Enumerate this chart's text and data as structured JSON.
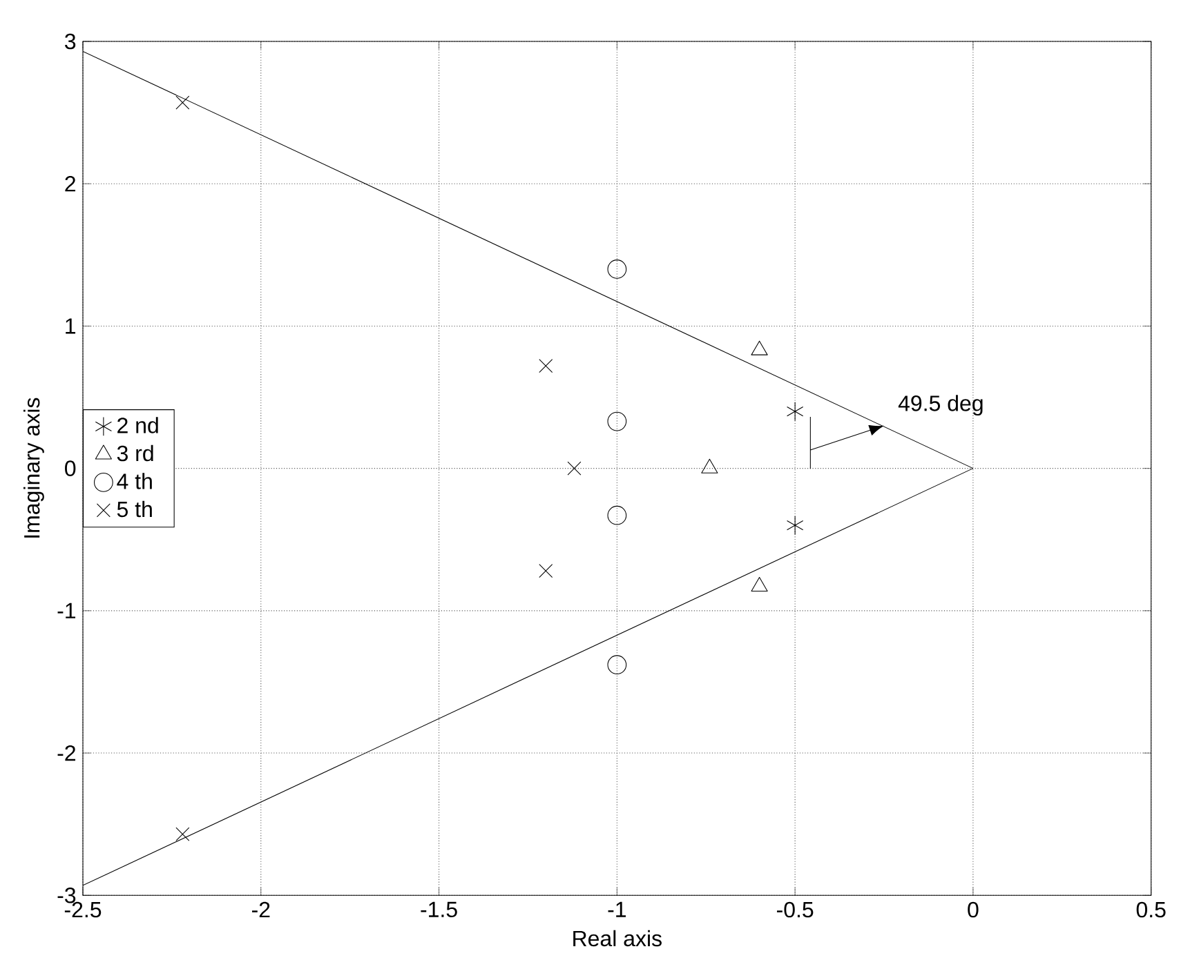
{
  "chart_data": {
    "type": "scatter",
    "xlabel": "Real axis",
    "ylabel": "Imaginary axis",
    "xlim": [
      -2.5,
      0.5
    ],
    "ylim": [
      -3,
      3
    ],
    "xticks": [
      -2.5,
      -2,
      -1.5,
      -1,
      -0.5,
      0,
      0.5
    ],
    "yticks": [
      -3,
      -2,
      -1,
      0,
      1,
      2,
      3
    ],
    "grid": true,
    "legend": "left",
    "series": [
      {
        "name": "2 nd",
        "color": "#000000",
        "x": [
          -0.5,
          -0.5
        ],
        "values": [
          0.4,
          -0.4
        ]
      },
      {
        "name": "3 rd",
        "color": "#000000",
        "marker": "triangle",
        "x": [
          -0.6,
          -0.74,
          -0.6
        ],
        "values": [
          0.83,
          0,
          -0.83
        ]
      },
      {
        "name": "4 th",
        "color": "#000000",
        "marker": "circle",
        "x": [
          -1.0,
          -1.0,
          -1.0,
          -1.0
        ],
        "values": [
          1.4,
          0.33,
          -0.33,
          -1.38
        ]
      },
      {
        "name": "5 th",
        "color": "#000000",
        "marker": "cross",
        "x": [
          -2.22,
          -1.2,
          -1.12,
          -1.2,
          -2.22
        ],
        "values": [
          2.57,
          0.72,
          0,
          -0.72,
          -2.57
        ]
      },
      {
        "type": "line",
        "color": "#000000",
        "marker": "none",
        "x": [
          -2.5,
          0
        ],
        "values": [
          2.93,
          0
        ]
      },
      {
        "type": "line",
        "color": "#000000",
        "marker": "none",
        "x": [
          -2.5,
          0
        ],
        "values": [
          -2.93,
          0
        ]
      }
    ],
    "annotations": [
      {
        "text": "49.5  deg",
        "x": -0.25,
        "y": 0.3
      }
    ]
  }
}
